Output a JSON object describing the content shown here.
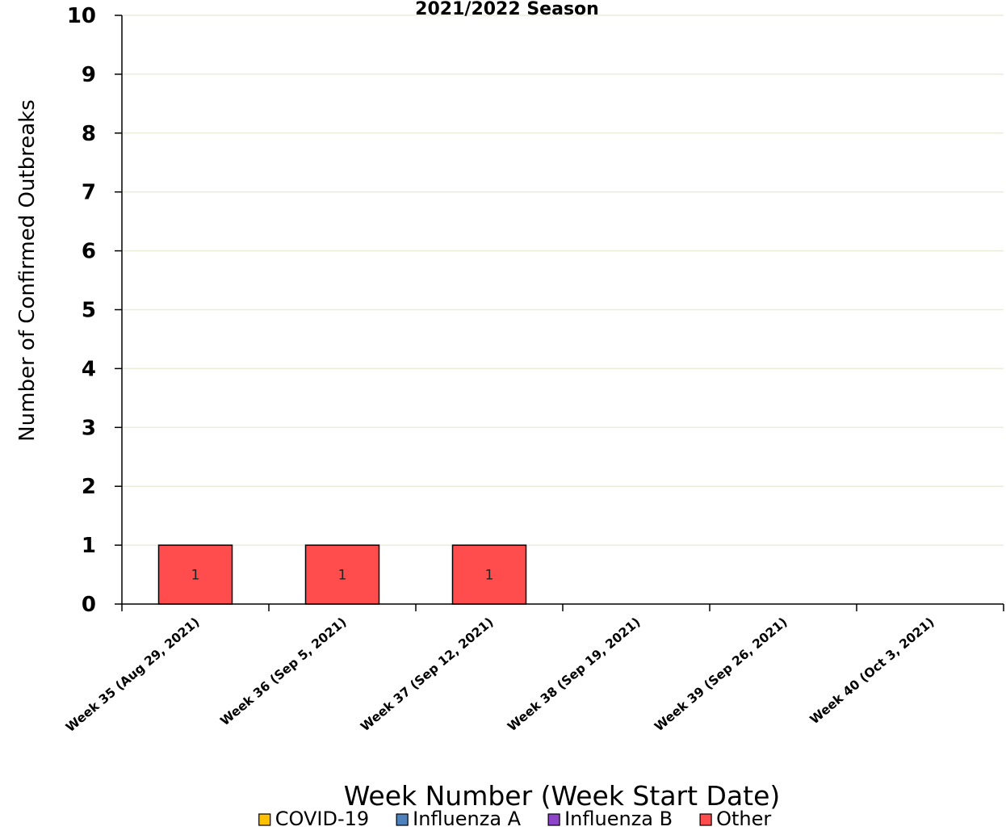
{
  "chart_data": {
    "type": "bar",
    "title": "2021/2022 Season",
    "xlabel": "Week Number (Week Start Date)",
    "ylabel": "Number of Confirmed Outbreaks",
    "ylim": [
      0,
      10
    ],
    "yticks": [
      "0",
      "1",
      "2",
      "3",
      "4",
      "5",
      "6",
      "7",
      "8",
      "9",
      "10"
    ],
    "grid": true,
    "stacked": true,
    "legend_position": "bottom",
    "categories": [
      "Week 35 (Aug 29, 2021)",
      "Week 36 (Sep 5, 2021)",
      "Week 37 (Sep 12, 2021)",
      "Week 38 (Sep 19, 2021)",
      "Week 39 (Sep 26, 2021)",
      "Week 40 (Oct 3, 2021)"
    ],
    "series": [
      {
        "name": "COVID-19",
        "color": "#FFC000",
        "values": [
          0,
          0,
          0,
          0,
          0,
          0
        ]
      },
      {
        "name": "Influenza A",
        "color": "#4F81BD",
        "values": [
          0,
          0,
          0,
          0,
          0,
          0
        ]
      },
      {
        "name": "Influenza B",
        "color": "#8E44C8",
        "values": [
          0,
          0,
          0,
          0,
          0,
          0
        ]
      },
      {
        "name": "Other",
        "color": "#FF4D4D",
        "values": [
          1,
          1,
          1,
          0,
          0,
          0
        ]
      }
    ]
  }
}
